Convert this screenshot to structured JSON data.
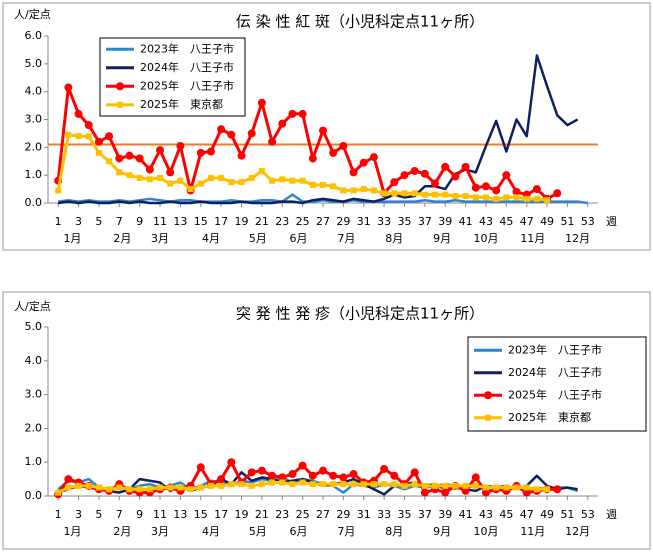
{
  "chart_data": [
    {
      "type": "line",
      "title": "伝 染 性 紅 斑（小児科定点11ヶ所）",
      "y_label": "人/定点",
      "x_label": "週",
      "month_labels": [
        "1月",
        "2月",
        "3月",
        "4月",
        "5月",
        "6月",
        "7月",
        "8月",
        "9月",
        "10月",
        "11月",
        "12月"
      ],
      "x": [
        1,
        2,
        3,
        4,
        5,
        6,
        7,
        8,
        9,
        10,
        11,
        12,
        13,
        14,
        15,
        16,
        17,
        18,
        19,
        20,
        21,
        22,
        23,
        24,
        25,
        26,
        27,
        28,
        29,
        30,
        31,
        32,
        33,
        34,
        35,
        36,
        37,
        38,
        39,
        40,
        41,
        42,
        43,
        44,
        45,
        46,
        47,
        48,
        49,
        50,
        51,
        52,
        53
      ],
      "xlim": [
        0,
        54
      ],
      "xticks": [
        1,
        3,
        5,
        7,
        9,
        11,
        13,
        15,
        17,
        19,
        21,
        23,
        25,
        27,
        29,
        31,
        33,
        35,
        37,
        39,
        41,
        43,
        45,
        47,
        49,
        51,
        53
      ],
      "ylim": [
        0,
        6
      ],
      "yticks": [
        {
          "value": 0,
          "label": "0.0"
        },
        {
          "value": 1,
          "label": "1.0"
        },
        {
          "value": 2,
          "label": "2.0"
        },
        {
          "value": 3,
          "label": "3.0"
        },
        {
          "value": 4,
          "label": "4.0"
        },
        {
          "value": 5,
          "label": "5.0"
        },
        {
          "value": 6,
          "label": "6.0"
        }
      ],
      "grid": false,
      "legend": "upper left",
      "reference_line": {
        "value": 2.1,
        "color": "#f07828"
      },
      "series": [
        {
          "name": "2023年　八王子市",
          "color": "#2e86cf",
          "marker": "none",
          "values": [
            0.05,
            0.1,
            0.05,
            0.1,
            0.05,
            0.05,
            0.1,
            0.05,
            0.1,
            0.15,
            0.1,
            0.05,
            0.1,
            0.1,
            0.05,
            0.05,
            0.05,
            0.1,
            0.05,
            0.05,
            0.1,
            0.1,
            0.05,
            0.3,
            0.05,
            0.05,
            0.1,
            0.05,
            0.05,
            0.1,
            0.05,
            0.05,
            0.05,
            0.05,
            0.05,
            0.05,
            0.1,
            0.05,
            0.05,
            0.1,
            0.05,
            0.05,
            0.05,
            0.05,
            0.05,
            0.05,
            0.05,
            0.05,
            0.05,
            0.05,
            0.05,
            0.05,
            0
          ]
        },
        {
          "name": "2024年　八王子市",
          "color": "#0d2160",
          "marker": "none",
          "values": [
            0,
            0.05,
            0,
            0.05,
            0,
            0,
            0.05,
            0,
            0.05,
            0,
            0,
            0.05,
            0,
            0,
            0.05,
            0,
            0,
            0,
            0.05,
            0,
            0,
            0,
            0.05,
            0.05,
            0,
            0.1,
            0.15,
            0.1,
            0.05,
            0.15,
            0.1,
            0.05,
            0.15,
            0.3,
            0.2,
            0.25,
            0.6,
            0.6,
            0.5,
            1.05,
            1.2,
            1.1,
            2.05,
            2.95,
            1.85,
            3.0,
            2.4,
            5.3,
            4.2,
            3.15,
            2.8,
            3.0,
            null
          ]
        },
        {
          "name": "2025年　八王子市",
          "color": "#ff0000",
          "marker": "circle",
          "values": [
            0.8,
            4.15,
            3.2,
            2.8,
            2.2,
            2.4,
            1.6,
            1.7,
            1.6,
            1.2,
            1.9,
            1.1,
            2.05,
            0.45,
            1.8,
            1.85,
            2.65,
            2.45,
            1.7,
            2.5,
            3.6,
            2.2,
            2.85,
            3.2,
            3.2,
            1.6,
            2.6,
            1.8,
            2.05,
            1.1,
            1.45,
            1.65,
            0.35,
            0.75,
            1.0,
            1.15,
            1.05,
            0.7,
            1.3,
            0.95,
            1.3,
            0.55,
            0.6,
            0.45,
            1.0,
            0.4,
            0.3,
            0.5,
            0.15,
            0.35,
            null,
            null,
            null
          ]
        },
        {
          "name": "2025年　東京都",
          "color": "#ffc000",
          "marker": "square",
          "values": [
            0.45,
            2.45,
            2.4,
            2.4,
            1.8,
            1.5,
            1.1,
            1.0,
            0.9,
            0.85,
            0.9,
            0.7,
            0.8,
            0.5,
            0.7,
            0.9,
            0.9,
            0.75,
            0.75,
            0.9,
            1.15,
            0.8,
            0.85,
            0.8,
            0.8,
            0.65,
            0.65,
            0.6,
            0.45,
            0.45,
            0.5,
            0.45,
            0.35,
            0.35,
            0.35,
            0.35,
            0.3,
            0.3,
            0.3,
            0.25,
            0.25,
            0.2,
            0.2,
            0.15,
            0.2,
            0.2,
            0.15,
            0.15,
            0.1,
            null,
            null,
            null,
            null
          ]
        }
      ]
    },
    {
      "type": "line",
      "title": "突 発 性 発 疹（小児科定点11ヶ所）",
      "y_label": "人/定点",
      "x_label": "週",
      "month_labels": [
        "1月",
        "2月",
        "3月",
        "4月",
        "5月",
        "6月",
        "7月",
        "8月",
        "9月",
        "10月",
        "11月",
        "12月"
      ],
      "x": [
        1,
        2,
        3,
        4,
        5,
        6,
        7,
        8,
        9,
        10,
        11,
        12,
        13,
        14,
        15,
        16,
        17,
        18,
        19,
        20,
        21,
        22,
        23,
        24,
        25,
        26,
        27,
        28,
        29,
        30,
        31,
        32,
        33,
        34,
        35,
        36,
        37,
        38,
        39,
        40,
        41,
        42,
        43,
        44,
        45,
        46,
        47,
        48,
        49,
        50,
        51,
        52,
        53
      ],
      "xlim": [
        0,
        54
      ],
      "xticks": [
        1,
        3,
        5,
        7,
        9,
        11,
        13,
        15,
        17,
        19,
        21,
        23,
        25,
        27,
        29,
        31,
        33,
        35,
        37,
        39,
        41,
        43,
        45,
        47,
        49,
        51,
        53
      ],
      "ylim": [
        0,
        5
      ],
      "yticks": [
        {
          "value": 0,
          "label": "0.0"
        },
        {
          "value": 1,
          "label": "1.0"
        },
        {
          "value": 2,
          "label": "2.0"
        },
        {
          "value": 3,
          "label": "3.0"
        },
        {
          "value": 4,
          "label": "4.0"
        },
        {
          "value": 5,
          "label": "5.0"
        }
      ],
      "grid": false,
      "legend": "upper right",
      "series": [
        {
          "name": "2023年　八王子市",
          "color": "#2e86cf",
          "marker": "none",
          "values": [
            0.2,
            0.45,
            0.4,
            0.5,
            0.25,
            0.15,
            0.3,
            0.2,
            0.3,
            0.35,
            0.25,
            0.3,
            0.4,
            0.2,
            0.3,
            0.45,
            0.4,
            0.3,
            0.45,
            0.4,
            0.5,
            0.45,
            0.55,
            0.4,
            0.5,
            0.45,
            0.35,
            0.3,
            0.1,
            0.35,
            0.3,
            0.25,
            0.35,
            0.3,
            0.2,
            0.3,
            0.25,
            0.3,
            0.35,
            0.3,
            0.25,
            0.3,
            0.2,
            0.25,
            0.2,
            0.3,
            0.2,
            0.25,
            0.2,
            0.25,
            0.25,
            0.15,
            null
          ]
        },
        {
          "name": "2024年　八王子市",
          "color": "#0d2160",
          "marker": "none",
          "values": [
            0.1,
            0.2,
            0.3,
            0.25,
            0.2,
            0.15,
            0.1,
            0.2,
            0.5,
            0.45,
            0.4,
            0.15,
            0.3,
            0.15,
            0.25,
            0.3,
            0.5,
            0.35,
            0.7,
            0.45,
            0.55,
            0.5,
            0.4,
            0.45,
            0.5,
            0.4,
            0.3,
            0.35,
            0.4,
            0.5,
            0.35,
            0.2,
            0.05,
            0.3,
            0.35,
            0.4,
            0.3,
            0.35,
            0.2,
            0.25,
            0.2,
            0.15,
            0.3,
            0.25,
            0.3,
            0.2,
            0.3,
            0.6,
            0.3,
            0.2,
            0.25,
            0.2,
            null
          ]
        },
        {
          "name": "2025年　八王子市",
          "color": "#ff0000",
          "marker": "circle",
          "values": [
            0.05,
            0.5,
            0.4,
            0.3,
            0.2,
            0.15,
            0.35,
            0.15,
            0.1,
            0.1,
            0.2,
            0.25,
            0.15,
            0.3,
            0.85,
            0.35,
            0.5,
            1.0,
            0.4,
            0.7,
            0.75,
            0.6,
            0.55,
            0.65,
            0.9,
            0.6,
            0.75,
            0.6,
            0.55,
            0.65,
            0.4,
            0.45,
            0.8,
            0.6,
            0.35,
            0.7,
            0.1,
            0.2,
            0.1,
            0.3,
            0.15,
            0.55,
            0.1,
            0.2,
            0.15,
            0.3,
            0.1,
            0.15,
            0.2,
            0.2,
            null,
            null,
            null
          ]
        },
        {
          "name": "2025年　東京都",
          "color": "#ffc000",
          "marker": "square",
          "values": [
            0.1,
            0.25,
            0.3,
            0.3,
            0.25,
            0.2,
            0.25,
            0.2,
            0.2,
            0.2,
            0.25,
            0.25,
            0.25,
            0.2,
            0.25,
            0.3,
            0.3,
            0.35,
            0.35,
            0.3,
            0.35,
            0.4,
            0.4,
            0.35,
            0.4,
            0.35,
            0.35,
            0.35,
            0.35,
            0.35,
            0.35,
            0.35,
            0.35,
            0.35,
            0.3,
            0.35,
            0.3,
            0.3,
            0.3,
            0.3,
            0.3,
            0.3,
            0.25,
            0.25,
            0.25,
            0.25,
            0.25,
            0.2,
            0.2,
            null,
            null,
            null,
            null
          ]
        }
      ]
    }
  ]
}
